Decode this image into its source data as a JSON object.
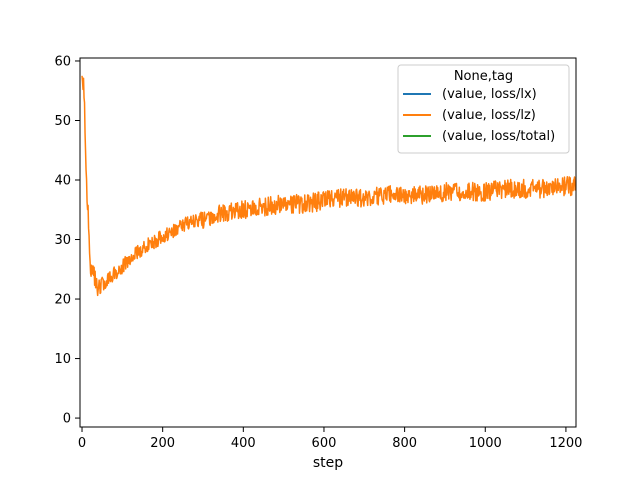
{
  "chart_data": {
    "type": "line",
    "title": "",
    "xlabel": "step",
    "ylabel": "",
    "xlim": [
      -5,
      1225
    ],
    "ylim": [
      -1.5,
      60.5
    ],
    "xticks": [
      0,
      200,
      400,
      600,
      800,
      1000,
      1200
    ],
    "yticks": [
      0,
      10,
      20,
      30,
      40,
      50,
      60
    ],
    "grid": false,
    "legend": {
      "title": "None,tag",
      "placement": "top-right"
    },
    "colors": {
      "lx": "#1f77b4",
      "lz": "#ff7f0e",
      "total": "#2ca02c"
    },
    "series": [
      {
        "name": "(value, loss/lx)",
        "color": "#1f77b4",
        "x": [],
        "y": []
      },
      {
        "name": "(value, loss/lz)",
        "color": "#ff7f0e",
        "x": [
          0,
          5,
          10,
          15,
          20,
          25,
          30,
          35,
          40,
          45,
          50,
          60,
          75,
          100,
          125,
          150,
          175,
          200,
          250,
          300,
          350,
          400,
          450,
          500,
          550,
          600,
          650,
          700,
          750,
          800,
          850,
          900,
          950,
          1000,
          1050,
          1100,
          1150,
          1200,
          1225
        ],
        "y": [
          60,
          55,
          42,
          35,
          27,
          25,
          24,
          23,
          22.5,
          22,
          22.5,
          23,
          24,
          25.5,
          27,
          28.5,
          29.5,
          30.5,
          32.5,
          33.5,
          34.5,
          35,
          35.5,
          36,
          36,
          36.5,
          37,
          37,
          37.5,
          37.5,
          37.5,
          38,
          38,
          38,
          38.5,
          38.5,
          38.5,
          39,
          39
        ]
      },
      {
        "name": "(value, loss/total)",
        "color": "#2ca02c",
        "x": [],
        "y": []
      }
    ],
    "annotations": []
  }
}
